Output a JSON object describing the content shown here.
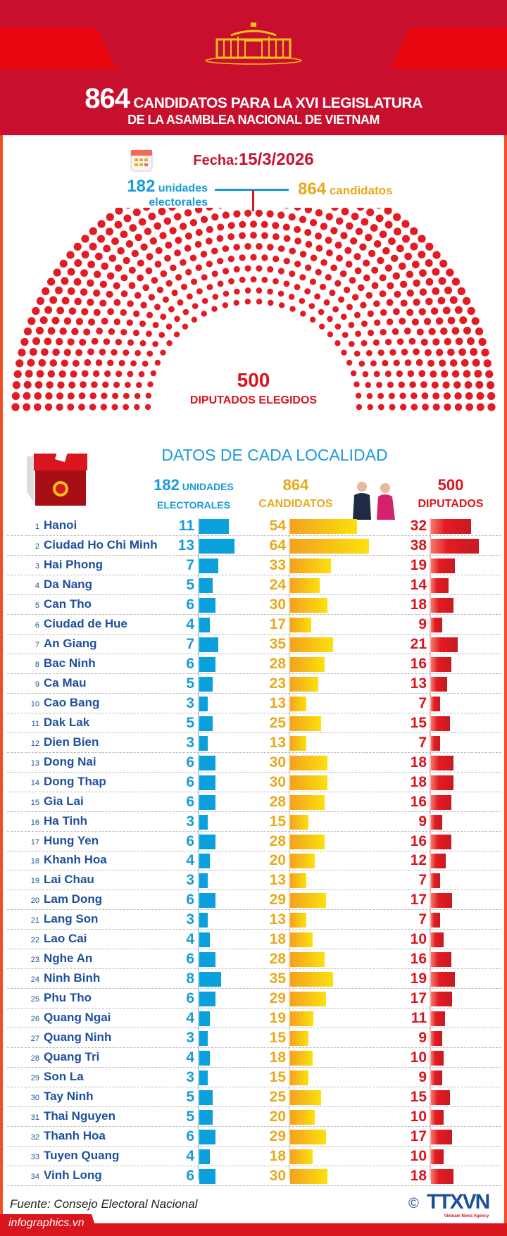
{
  "header": {
    "title_number": "864",
    "title_line1": "CANDIDATOS PARA  LA XVI LEGISLATURA",
    "title_line2": "DE LA ASAMBLEA NACIONAL DE VIETNAM"
  },
  "summary": {
    "date_label": "Fecha:",
    "date": "15/3/2026",
    "units_number": "182",
    "units_text1": "unidades",
    "units_text2": "electorales",
    "candidates_number": "864",
    "candidates_text": "candidatos",
    "elected_number": "500",
    "elected_text": "DIPUTADOS ELEGIDOS"
  },
  "section_title": "DATOS DE CADA LOCALIDAD",
  "columns": {
    "units_number": "182",
    "units_text1": "UNIDADES",
    "units_text2": "ELECTORALES",
    "candidates_number": "864",
    "candidates_text": "CANDIDATOS",
    "deputies_number": "500",
    "deputies_text": "DIPUTADOS"
  },
  "colors": {
    "header_red": "#c8102e",
    "blue": "#1a9ad6",
    "gold": "#e8a91b",
    "red": "#d9151e",
    "name": "#1e4f9c"
  },
  "chart_data": {
    "type": "bar",
    "orientation": "horizontal",
    "categories": [
      "Hanoi",
      "Ciudad Ho Chi Minh",
      "Hai Phong",
      "Da Nang",
      "Can Tho",
      "Ciudad de Hue",
      "An Giang",
      "Bac Ninh",
      "Ca Mau",
      "Cao Bang",
      "Dak Lak",
      "Dien Bien",
      "Dong Nai",
      "Dong Thap",
      "Gia Lai",
      "Ha Tinh",
      "Hung Yen",
      "Khanh Hoa",
      "Lai Chau",
      "Lam Dong",
      "Lang Son",
      "Lao Cai",
      "Nghe An",
      "Ninh Binh",
      "Phu Tho",
      "Quang Ngai",
      "Quang Ninh",
      "Quang Tri",
      "Son La",
      "Tay Ninh",
      "Thai Nguyen",
      "Thanh Hoa",
      "Tuyen Quang",
      "Vinh Long"
    ],
    "series": [
      {
        "name": "UNIDADES ELECTORALES",
        "values": [
          11,
          13,
          7,
          5,
          6,
          4,
          7,
          6,
          5,
          3,
          5,
          3,
          6,
          6,
          6,
          3,
          6,
          4,
          3,
          6,
          3,
          4,
          6,
          8,
          6,
          4,
          3,
          4,
          3,
          5,
          5,
          6,
          4,
          6
        ]
      },
      {
        "name": "CANDIDATOS",
        "values": [
          54,
          64,
          33,
          24,
          30,
          17,
          35,
          28,
          23,
          13,
          25,
          13,
          30,
          30,
          28,
          15,
          28,
          20,
          13,
          29,
          13,
          18,
          28,
          35,
          29,
          19,
          15,
          18,
          15,
          25,
          20,
          29,
          18,
          30
        ]
      },
      {
        "name": "DIPUTADOS",
        "values": [
          32,
          38,
          19,
          14,
          18,
          9,
          21,
          16,
          13,
          7,
          15,
          7,
          18,
          18,
          16,
          9,
          16,
          12,
          7,
          17,
          7,
          10,
          16,
          19,
          17,
          11,
          9,
          10,
          9,
          15,
          10,
          17,
          10,
          18
        ]
      }
    ],
    "grid": false
  },
  "footer": {
    "source": "Fuente: Consejo Electoral Nacional",
    "site": "infographics.vn",
    "logo": "TTXVN",
    "logo_sub": "Vietnam News Agency"
  }
}
